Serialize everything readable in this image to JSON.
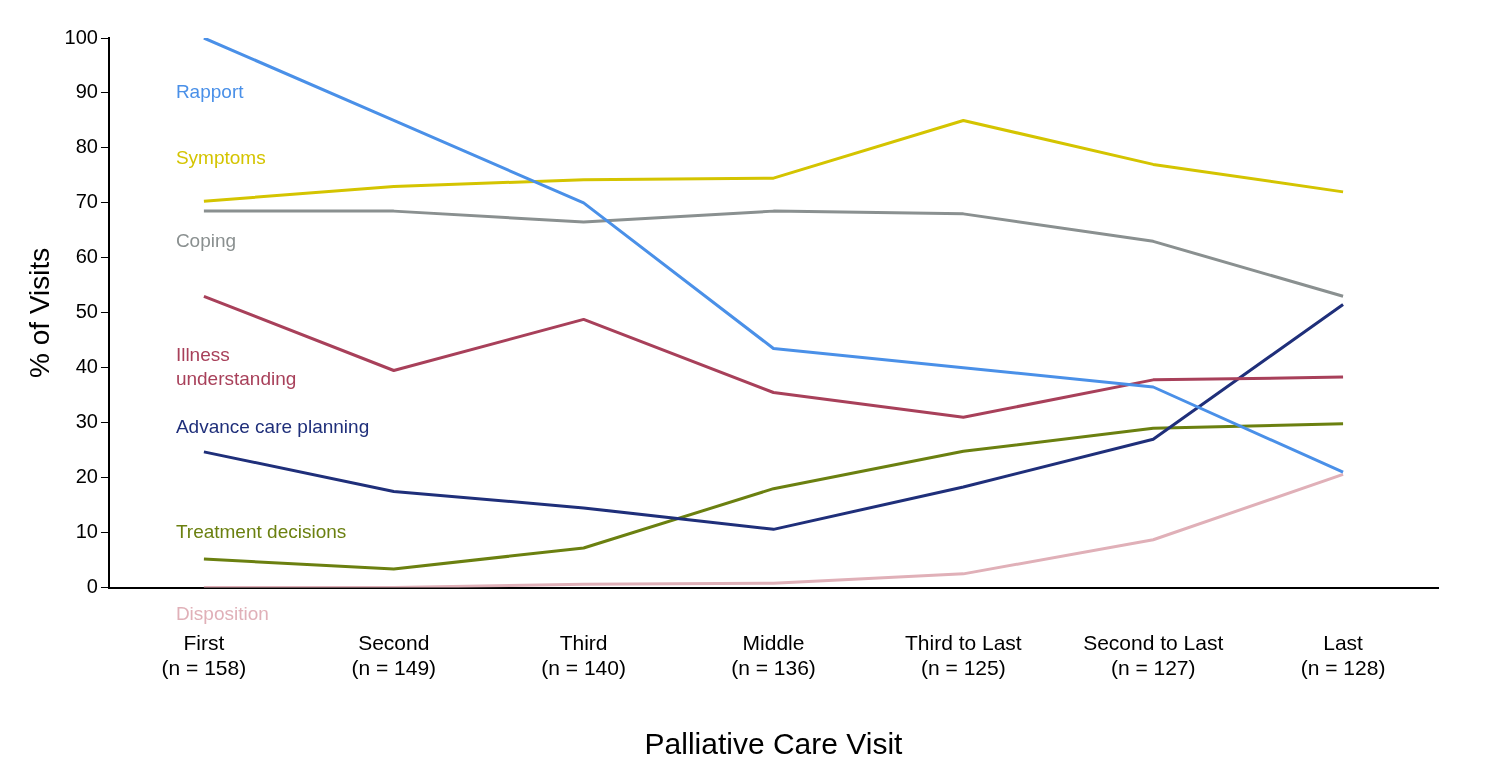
{
  "chart_data": {
    "type": "line",
    "ylabel": "% of Visits",
    "xlabel": "Palliative Care Visit",
    "categories": [
      "First (n = 158)",
      "Second (n = 149)",
      "Third (n = 140)",
      "Middle (n = 136)",
      "Third to Last (n = 125)",
      "Second to Last (n = 127)",
      "Last (n = 128)"
    ],
    "ylim": [
      0,
      100
    ],
    "yticks": [
      0,
      10,
      20,
      30,
      40,
      50,
      60,
      70,
      80,
      90,
      100
    ],
    "grid": false,
    "legend": false,
    "marker": "none",
    "line_style": "solid",
    "series": [
      {
        "name": "Rapport",
        "color": "#4a90e8",
        "values": [
          100,
          85,
          70,
          43.5,
          40,
          36.5,
          21
        ]
      },
      {
        "name": "Symptoms",
        "color": "#d4c400",
        "values": [
          70.3,
          73,
          74.2,
          74.5,
          85,
          77,
          72
        ]
      },
      {
        "name": "Coping",
        "color": "#8a9090",
        "values": [
          68.5,
          68.5,
          66.5,
          68.5,
          68,
          63,
          53
        ]
      },
      {
        "name": "Illness understanding",
        "color": "#a8405a",
        "values": [
          53,
          39.5,
          48.8,
          35.5,
          31,
          37.8,
          38.3
        ]
      },
      {
        "name": "Advance care planning",
        "color": "#1f2f7a",
        "values": [
          24.7,
          17.5,
          14.5,
          10.6,
          18.3,
          27,
          51.5
        ]
      },
      {
        "name": "Treatment decisions",
        "color": "#6b8010",
        "values": [
          5.2,
          3.4,
          7.2,
          18,
          24.8,
          29,
          29.8
        ]
      },
      {
        "name": "Disposition",
        "color": "#e0b0b8",
        "values": [
          0,
          0,
          0.6,
          0.8,
          2.5,
          8.7,
          20.6
        ]
      }
    ]
  }
}
